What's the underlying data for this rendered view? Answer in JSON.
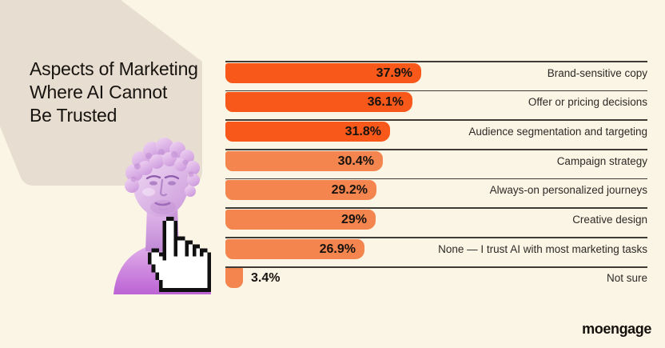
{
  "page": {
    "title_lines": "Aspects of Marketing\nWhere AI Cannot\nBe Trusted"
  },
  "brand": {
    "logo_text": "moengage"
  },
  "colors": {
    "background": "#FBF5E5",
    "backdrop_shape": "#E7DDD0",
    "bar_strong": "#F8591B",
    "bar_soft": "#F5854F",
    "row_rule": "#3E3B36",
    "text_dark": "#16130F"
  },
  "decor": {
    "statue": "lavender-david-bust-statue",
    "cursor": "pixelated-hand-cursor"
  },
  "chart_data": {
    "type": "bar",
    "orientation": "horizontal",
    "title": "Aspects of Marketing Where AI Cannot Be Trusted",
    "unit": "percent",
    "xlim": [
      0,
      40
    ],
    "gridlines": "horizontal rule above each bar",
    "legend": "none",
    "categories": [
      "Brand-sensitive copy",
      "Offer or pricing decisions",
      "Audience segmentation and targeting",
      "Campaign strategy",
      "Always-on personalized journeys",
      "Creative design",
      "None — I trust AI with most marketing tasks",
      "Not sure"
    ],
    "values": [
      37.9,
      36.1,
      31.8,
      30.4,
      29.2,
      29,
      26.9,
      3.4
    ],
    "value_labels": [
      "37.9%",
      "36.1%",
      "31.8%",
      "30.4%",
      "29.2%",
      "29%",
      "26.9%",
      "3.4%"
    ],
    "bar_colors": [
      "#F8591B",
      "#F8591B",
      "#F8591B",
      "#F5854F",
      "#F5854F",
      "#F5854F",
      "#F5854F",
      "#F5854F"
    ]
  }
}
